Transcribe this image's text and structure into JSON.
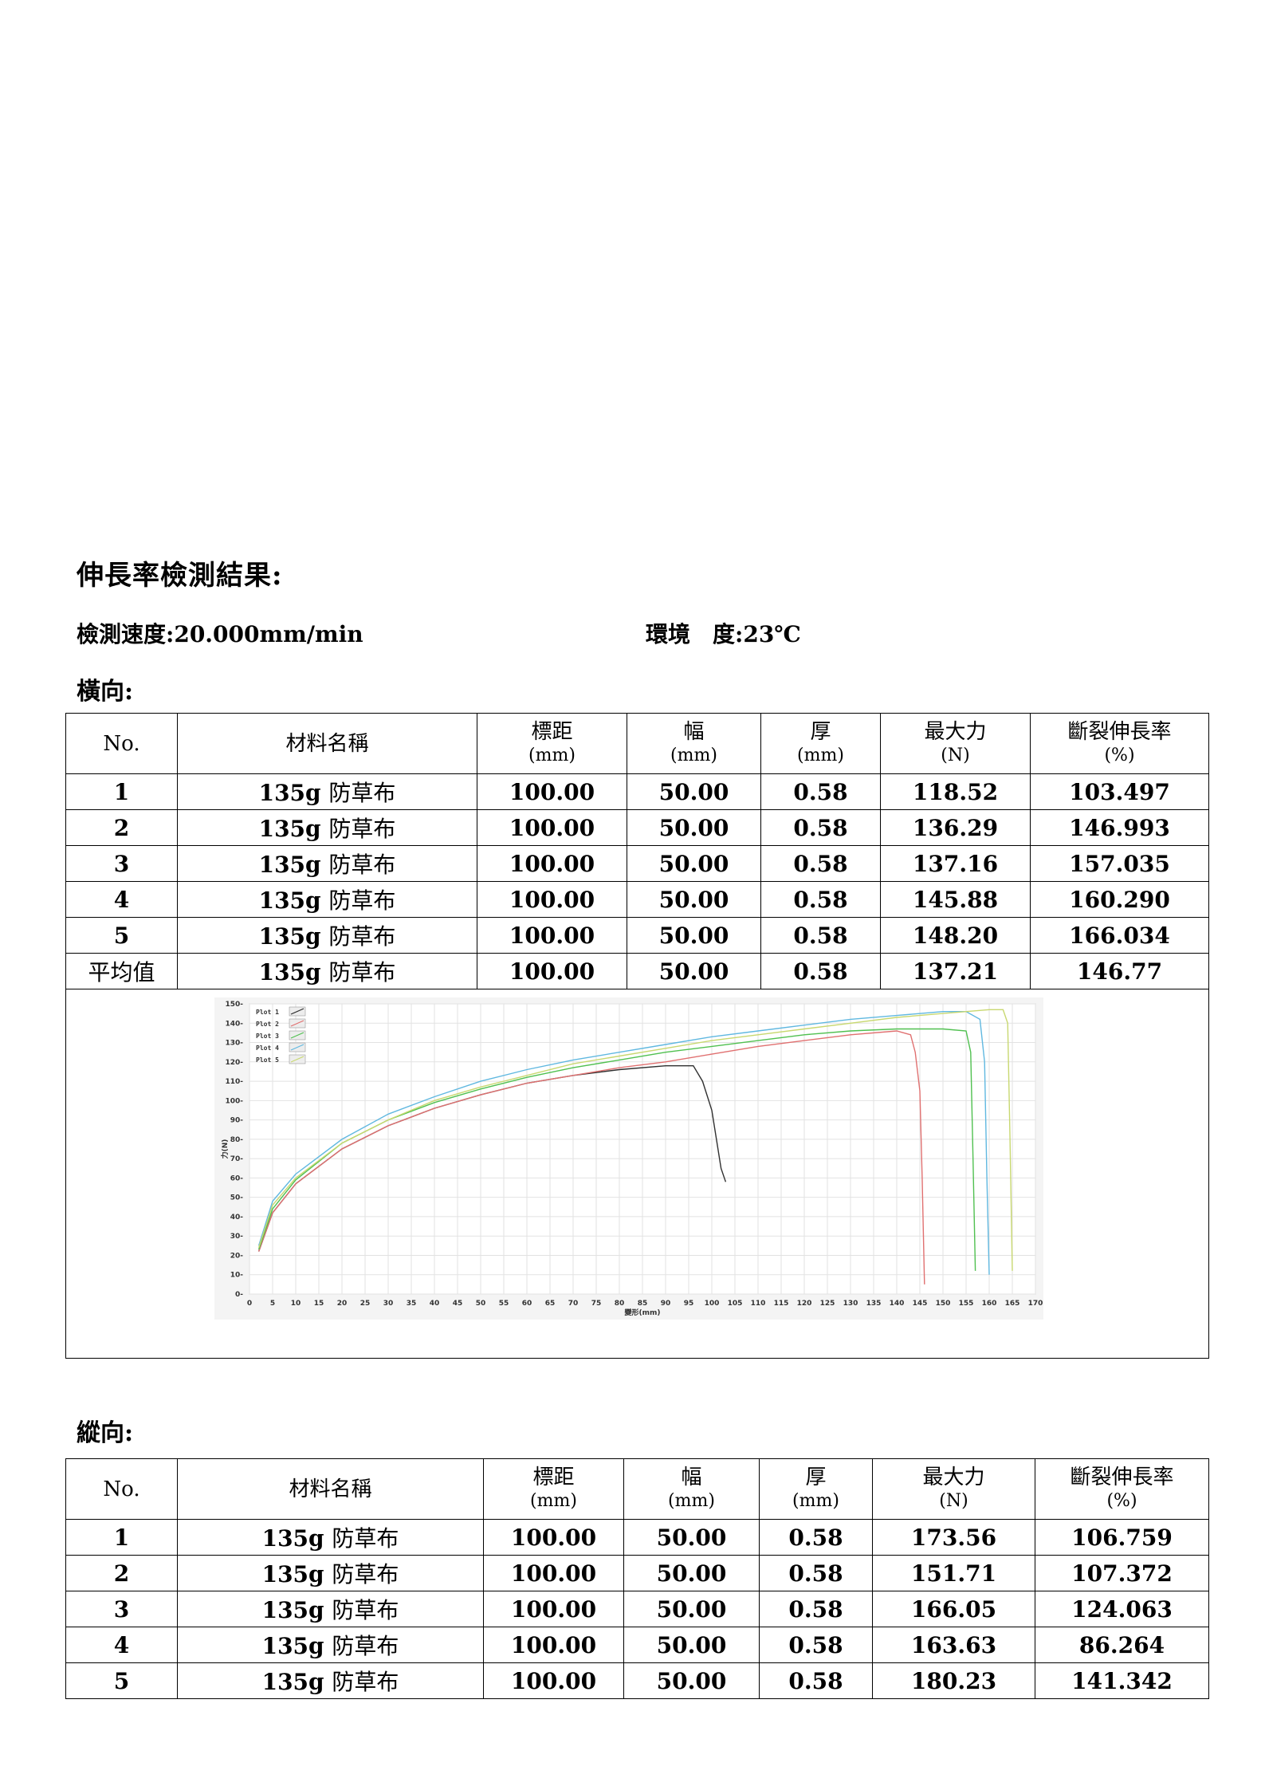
{
  "title": "伸長率檢測結果:",
  "speed": {
    "label": "檢測速度:",
    "value": "20.000mm/min"
  },
  "environment": {
    "label": "環境　度:",
    "value": "23℃"
  },
  "horizontal": {
    "label": "橫向:",
    "headers": [
      {
        "name": "No.",
        "unit": ""
      },
      {
        "name": "材料名稱",
        "unit": ""
      },
      {
        "name": "標距",
        "unit": "(mm)"
      },
      {
        "name": "幅",
        "unit": "(mm)"
      },
      {
        "name": "厚",
        "unit": "(mm)"
      },
      {
        "name": "最大力",
        "unit": "(N)"
      },
      {
        "name": "斷裂伸長率",
        "unit": "(%)"
      }
    ],
    "rows": [
      {
        "no": "1",
        "material_g": "135g",
        "material_zh": "防草布",
        "gauge": "100.00",
        "width": "50.00",
        "thickness": "0.58",
        "max_force": "118.52",
        "elongation": "103.497"
      },
      {
        "no": "2",
        "material_g": "135g",
        "material_zh": "防草布",
        "gauge": "100.00",
        "width": "50.00",
        "thickness": "0.58",
        "max_force": "136.29",
        "elongation": "146.993"
      },
      {
        "no": "3",
        "material_g": "135g",
        "material_zh": "防草布",
        "gauge": "100.00",
        "width": "50.00",
        "thickness": "0.58",
        "max_force": "137.16",
        "elongation": "157.035"
      },
      {
        "no": "4",
        "material_g": "135g",
        "material_zh": "防草布",
        "gauge": "100.00",
        "width": "50.00",
        "thickness": "0.58",
        "max_force": "145.88",
        "elongation": "160.290"
      },
      {
        "no": "5",
        "material_g": "135g",
        "material_zh": "防草布",
        "gauge": "100.00",
        "width": "50.00",
        "thickness": "0.58",
        "max_force": "148.20",
        "elongation": "166.034"
      }
    ],
    "average": {
      "no": "平均值",
      "material_g": "135g",
      "material_zh": "防草布",
      "gauge": "100.00",
      "width": "50.00",
      "thickness": "0.58",
      "max_force": "137.21",
      "elongation": "146.77"
    }
  },
  "vertical": {
    "label": "縱向:",
    "headers": [
      {
        "name": "No.",
        "unit": ""
      },
      {
        "name": "材料名稱",
        "unit": ""
      },
      {
        "name": "標距",
        "unit": "(mm)"
      },
      {
        "name": "幅",
        "unit": "(mm)"
      },
      {
        "name": "厚",
        "unit": "(mm)"
      },
      {
        "name": "最大力",
        "unit": "(N)"
      },
      {
        "name": "斷裂伸長率",
        "unit": "(%)"
      }
    ],
    "rows": [
      {
        "no": "1",
        "material_g": "135g",
        "material_zh": "防草布",
        "gauge": "100.00",
        "width": "50.00",
        "thickness": "0.58",
        "max_force": "173.56",
        "elongation": "106.759"
      },
      {
        "no": "2",
        "material_g": "135g",
        "material_zh": "防草布",
        "gauge": "100.00",
        "width": "50.00",
        "thickness": "0.58",
        "max_force": "151.71",
        "elongation": "107.372"
      },
      {
        "no": "3",
        "material_g": "135g",
        "material_zh": "防草布",
        "gauge": "100.00",
        "width": "50.00",
        "thickness": "0.58",
        "max_force": "166.05",
        "elongation": "124.063"
      },
      {
        "no": "4",
        "material_g": "135g",
        "material_zh": "防草布",
        "gauge": "100.00",
        "width": "50.00",
        "thickness": "0.58",
        "max_force": "163.63",
        "elongation": "86.264"
      },
      {
        "no": "5",
        "material_g": "135g",
        "material_zh": "防草布",
        "gauge": "100.00",
        "width": "50.00",
        "thickness": "0.58",
        "max_force": "180.23",
        "elongation": "141.342"
      }
    ]
  },
  "chart_data": {
    "type": "line",
    "xlabel": "變形(mm)",
    "ylabel": "力(N)",
    "xlim": [
      0,
      170
    ],
    "ylim": [
      0,
      150
    ],
    "xticks": [
      0,
      5,
      10,
      15,
      20,
      25,
      30,
      35,
      40,
      45,
      50,
      55,
      60,
      65,
      70,
      75,
      80,
      85,
      90,
      95,
      100,
      105,
      110,
      115,
      120,
      125,
      130,
      135,
      140,
      145,
      150,
      155,
      160,
      165,
      170
    ],
    "yticks": [
      0,
      10,
      20,
      30,
      40,
      50,
      60,
      70,
      80,
      90,
      100,
      110,
      120,
      130,
      140,
      150
    ],
    "grid": true,
    "legend_position": "top-left",
    "series": [
      {
        "name": "Plot 1",
        "color": "#303030",
        "x": [
          2,
          5,
          10,
          20,
          30,
          40,
          50,
          60,
          70,
          80,
          90,
          96,
          98,
          100,
          101,
          102,
          103
        ],
        "y": [
          22,
          42,
          57,
          75,
          87,
          96,
          103,
          109,
          113,
          116,
          118,
          118,
          110,
          95,
          80,
          65,
          58
        ]
      },
      {
        "name": "Plot 2",
        "color": "#e07070",
        "x": [
          2,
          5,
          10,
          20,
          30,
          40,
          50,
          60,
          70,
          80,
          90,
          100,
          110,
          120,
          130,
          140,
          143,
          144,
          145,
          145.5,
          146
        ],
        "y": [
          22,
          42,
          57,
          75,
          87,
          96,
          103,
          109,
          113,
          117,
          120,
          124,
          128,
          131,
          134,
          136,
          134,
          125,
          105,
          60,
          5
        ]
      },
      {
        "name": "Plot 3",
        "color": "#50c050",
        "x": [
          2,
          5,
          10,
          20,
          30,
          40,
          50,
          60,
          70,
          80,
          90,
          100,
          110,
          120,
          130,
          140,
          150,
          155,
          156,
          156.5,
          157
        ],
        "y": [
          23,
          44,
          59,
          78,
          90,
          99,
          106,
          112,
          117,
          121,
          125,
          128,
          131,
          134,
          136,
          137,
          137,
          136,
          125,
          70,
          12
        ]
      },
      {
        "name": "Plot 4",
        "color": "#60b8e0",
        "x": [
          2,
          5,
          10,
          20,
          30,
          40,
          50,
          60,
          70,
          80,
          90,
          100,
          110,
          120,
          130,
          140,
          150,
          155,
          158,
          159,
          159.5,
          160
        ],
        "y": [
          25,
          48,
          62,
          80,
          93,
          102,
          110,
          116,
          121,
          125,
          129,
          133,
          136,
          139,
          142,
          144,
          146,
          146,
          142,
          120,
          60,
          10
        ]
      },
      {
        "name": "Plot 5",
        "color": "#c8d870",
        "x": [
          2,
          5,
          10,
          20,
          30,
          40,
          50,
          60,
          70,
          80,
          90,
          100,
          110,
          120,
          130,
          140,
          150,
          160,
          163,
          164,
          164.5,
          165
        ],
        "y": [
          24,
          46,
          60,
          78,
          90,
          100,
          107,
          113,
          119,
          123,
          127,
          131,
          134,
          137,
          140,
          143,
          145,
          147,
          147,
          140,
          80,
          12
        ]
      }
    ]
  }
}
